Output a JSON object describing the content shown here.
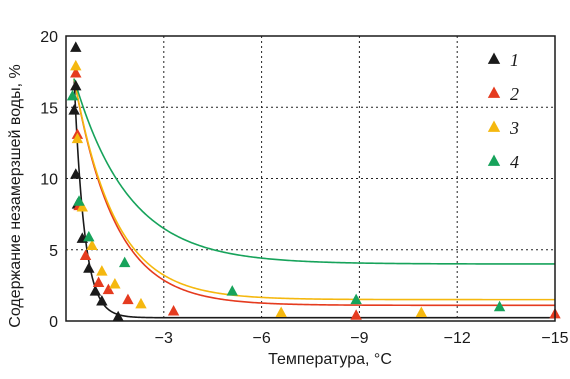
{
  "chart_data": {
    "type": "scatter",
    "title": "",
    "xlabel": "Температура, °С",
    "ylabel": "Содержание незамерзшей воды, %",
    "xlim": [
      0,
      -15
    ],
    "ylim": [
      0,
      20
    ],
    "x_ticks": [
      {
        "value": -3,
        "label": "−3"
      },
      {
        "value": -6,
        "label": "−6"
      },
      {
        "value": -9,
        "label": "−9"
      },
      {
        "value": -12,
        "label": "−12"
      },
      {
        "value": -15,
        "label": "−15"
      }
    ],
    "y_ticks": [
      {
        "value": 0,
        "label": "0"
      },
      {
        "value": 5,
        "label": "5"
      },
      {
        "value": 10,
        "label": "10"
      },
      {
        "value": 15,
        "label": "15"
      },
      {
        "value": 20,
        "label": "20"
      }
    ],
    "grid": true,
    "legend_position": "right",
    "series": [
      {
        "name": "1",
        "color": "#1a1a1a",
        "points": [
          [
            -0.3,
            19.2
          ],
          [
            -0.3,
            16.5
          ],
          [
            -0.25,
            14.8
          ],
          [
            -0.3,
            10.3
          ],
          [
            -0.35,
            8.2
          ],
          [
            -0.5,
            5.8
          ],
          [
            -0.7,
            3.7
          ],
          [
            -0.9,
            2.1
          ],
          [
            -1.1,
            1.4
          ],
          [
            -1.6,
            0.3
          ]
        ],
        "curve": {
          "a": 0.23,
          "b": 3.2
        }
      },
      {
        "name": "2",
        "color": "#e53b1f",
        "points": [
          [
            -0.3,
            17.4
          ],
          [
            -0.35,
            13.1
          ],
          [
            -0.4,
            8.1
          ],
          [
            -0.6,
            4.6
          ],
          [
            -1.0,
            2.7
          ],
          [
            -1.3,
            2.2
          ],
          [
            -1.9,
            1.5
          ],
          [
            -3.3,
            0.7
          ],
          [
            -8.9,
            0.4
          ],
          [
            -15.0,
            0.5
          ]
        ],
        "curve": {
          "a": 1.1,
          "b": 0.8
        }
      },
      {
        "name": "3",
        "color": "#f5b80f",
        "points": [
          [
            -0.3,
            17.9
          ],
          [
            -0.35,
            12.8
          ],
          [
            -0.5,
            8.0
          ],
          [
            -0.8,
            5.3
          ],
          [
            -1.1,
            3.5
          ],
          [
            -1.5,
            2.6
          ],
          [
            -2.3,
            1.2
          ],
          [
            -6.6,
            0.6
          ],
          [
            -10.9,
            0.6
          ]
        ],
        "curve": {
          "a": 1.5,
          "b": 0.8
        }
      },
      {
        "name": "4",
        "color": "#17a35b",
        "points": [
          [
            -0.2,
            15.8
          ],
          [
            -0.4,
            8.4
          ],
          [
            -0.7,
            5.9
          ],
          [
            -1.8,
            4.1
          ],
          [
            -5.1,
            2.1
          ],
          [
            -8.9,
            1.5
          ],
          [
            -13.3,
            1.0
          ]
        ],
        "curve": {
          "a": 4.0,
          "b": 0.6
        }
      }
    ]
  }
}
